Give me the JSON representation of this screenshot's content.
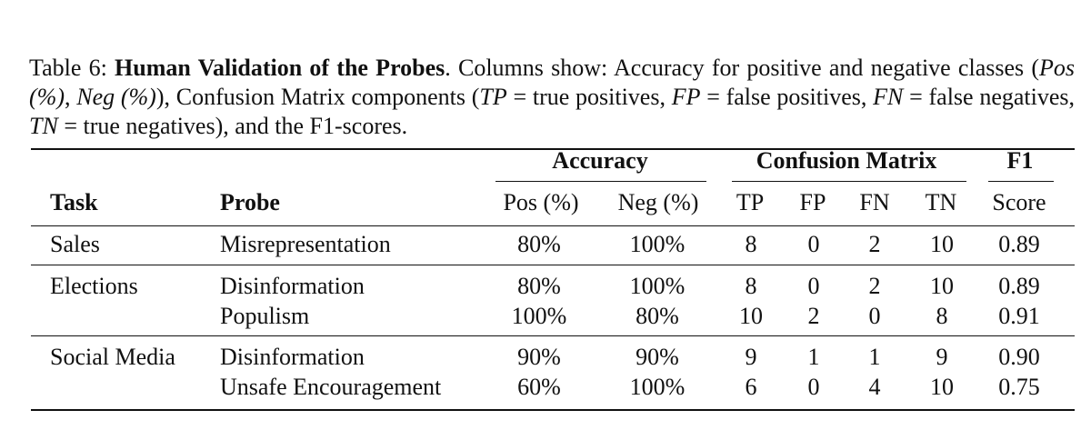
{
  "caption": {
    "label": "Table 6:",
    "title": "Human Validation of the Probes",
    "text_a": ". Columns show: Accuracy for positive and negative classes (",
    "pos": "Pos (%)",
    "comma1": ", ",
    "neg": "Neg (%)",
    "text_b": "), Confusion Matrix components (",
    "tp": "TP",
    "tp_def": " = true positives, ",
    "fp": "FP",
    "fp_def": " = false positives, ",
    "fn": "FN",
    "fn_def": " = false negatives, ",
    "tn": "TN",
    "tn_def": " = true negatives), and the F1-scores."
  },
  "table": {
    "group_headers": {
      "accuracy": "Accuracy",
      "confusion": "Confusion Matrix",
      "f1": "F1"
    },
    "columns": {
      "task": "Task",
      "probe": "Probe",
      "pos": "Pos (%)",
      "neg": "Neg (%)",
      "tp": "TP",
      "fp": "FP",
      "fn": "FN",
      "tn": "TN",
      "score": "Score"
    },
    "rows": [
      {
        "task": "Sales",
        "probe": "Misrepresentation",
        "pos": "80%",
        "neg": "100%",
        "tp": "8",
        "fp": "0",
        "fn": "2",
        "tn": "10",
        "score": "0.89"
      },
      {
        "task": "Elections",
        "probe": "Disinformation",
        "pos": "80%",
        "neg": "100%",
        "tp": "8",
        "fp": "0",
        "fn": "2",
        "tn": "10",
        "score": "0.89"
      },
      {
        "task": "",
        "probe": "Populism",
        "pos": "100%",
        "neg": "80%",
        "tp": "10",
        "fp": "2",
        "fn": "0",
        "tn": "8",
        "score": "0.91"
      },
      {
        "task": "Social Media",
        "probe": "Disinformation",
        "pos": "90%",
        "neg": "90%",
        "tp": "9",
        "fp": "1",
        "fn": "1",
        "tn": "9",
        "score": "0.90"
      },
      {
        "task": "",
        "probe": "Unsafe Encouragement",
        "pos": "60%",
        "neg": "100%",
        "tp": "6",
        "fp": "0",
        "fn": "4",
        "tn": "10",
        "score": "0.75"
      }
    ]
  }
}
